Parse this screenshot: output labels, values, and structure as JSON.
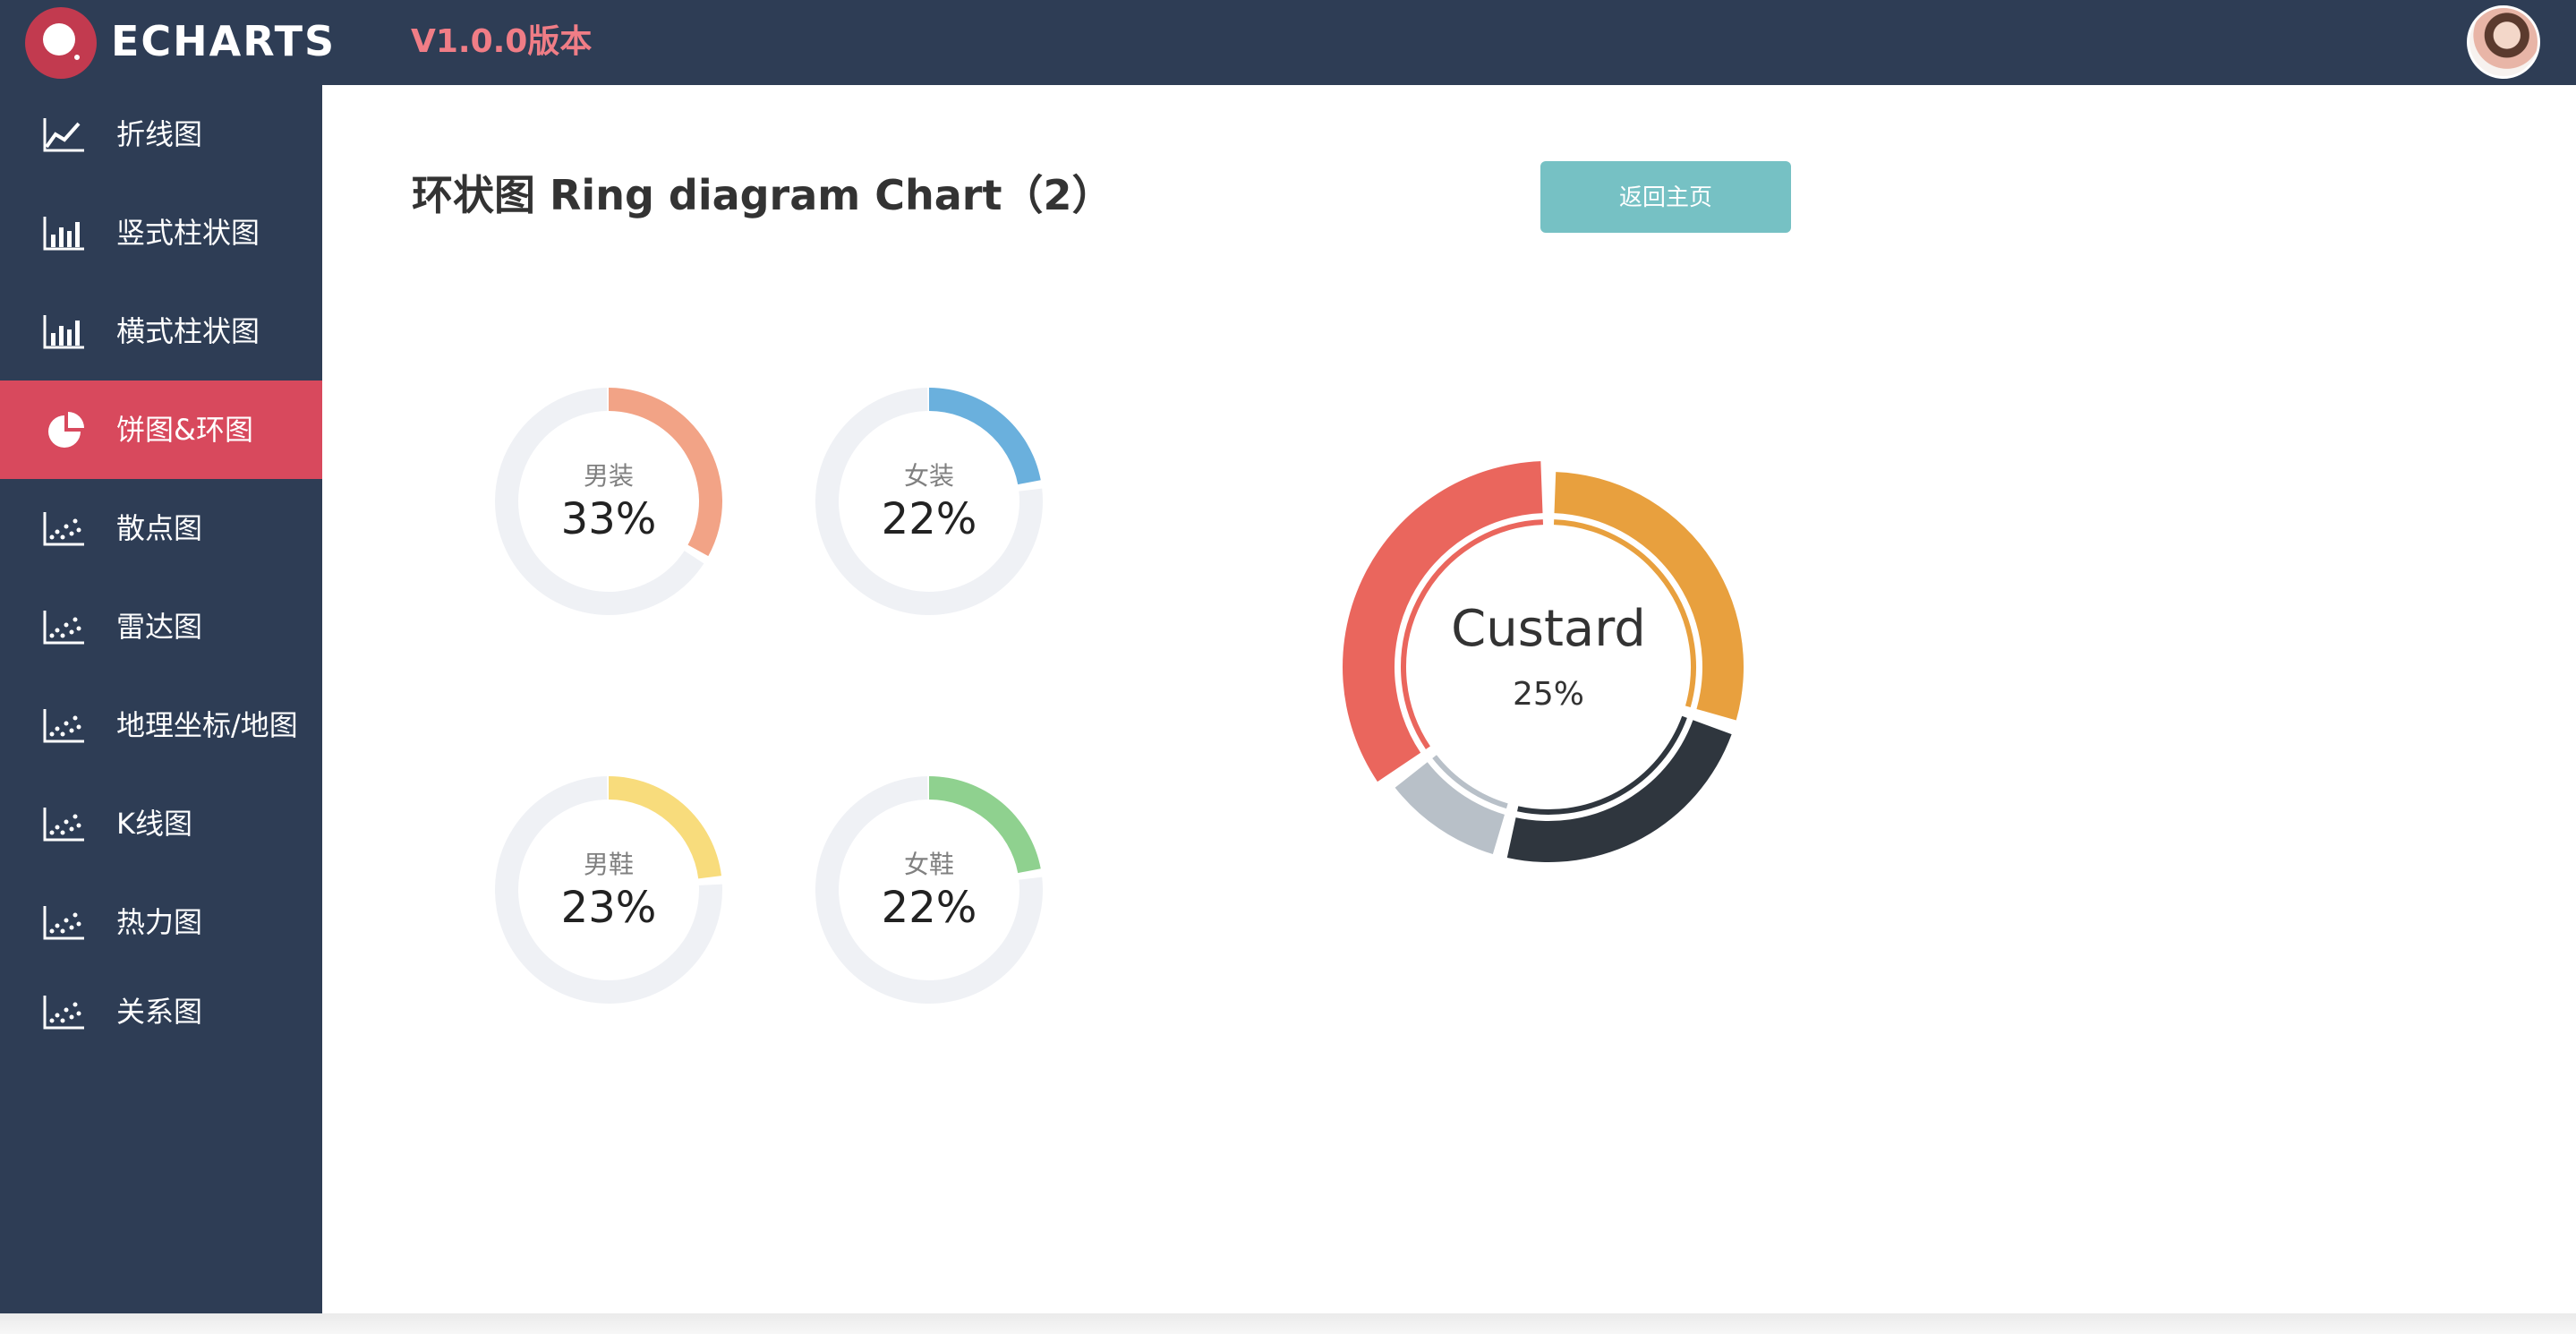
{
  "header": {
    "logo_text": "ECHARTS",
    "version": "V1.0.0版本"
  },
  "sidebar": {
    "items": [
      {
        "label": "折线图",
        "icon": "line-chart-icon",
        "active": false
      },
      {
        "label": "竖式柱状图",
        "icon": "bar-chart-icon",
        "active": false
      },
      {
        "label": "横式柱状图",
        "icon": "bar-chart-icon",
        "active": false
      },
      {
        "label": "饼图&环图",
        "icon": "pie-chart-icon",
        "active": true
      },
      {
        "label": "散点图",
        "icon": "scatter-chart-icon",
        "active": false
      },
      {
        "label": "雷达图",
        "icon": "scatter-chart-icon",
        "active": false
      },
      {
        "label": "地理坐标/地图",
        "icon": "scatter-chart-icon",
        "active": false
      },
      {
        "label": "K线图",
        "icon": "scatter-chart-icon",
        "active": false
      },
      {
        "label": "热力图",
        "icon": "scatter-chart-icon",
        "active": false
      },
      {
        "label": "关系图",
        "icon": "scatter-chart-icon",
        "active": false
      }
    ]
  },
  "main": {
    "title": "环状图 Ring diagram Chart（2）",
    "back_button": "返回主页"
  },
  "colors": {
    "topbar": "#2e3d55",
    "sidebar": "#2e3d55",
    "active_item": "#d8495d",
    "version_text": "#f07d86",
    "button": "#76c1c4",
    "ring_track": "#eff1f5"
  },
  "chart_data": [
    {
      "type": "pie",
      "label": "男装",
      "value_text": "33%",
      "value": 33,
      "color": "#f2a386"
    },
    {
      "type": "pie",
      "label": "女装",
      "value_text": "22%",
      "value": 22,
      "color": "#6ab0dd"
    },
    {
      "type": "pie",
      "label": "男鞋",
      "value_text": "23%",
      "value": 23,
      "color": "#f8dc7c"
    },
    {
      "type": "pie",
      "label": "女鞋",
      "value_text": "22%",
      "value": 22,
      "color": "#8fd18f"
    },
    {
      "type": "pie",
      "center_label": "Custard",
      "center_value": "25%",
      "slices": [
        {
          "value": 30,
          "color": "#e8a03e"
        },
        {
          "value": 24,
          "color": "#2f363e"
        },
        {
          "value": 11,
          "color": "#b8c0c8"
        },
        {
          "value": 35,
          "color": "#ea665d"
        }
      ],
      "highlighted_slice": 3
    }
  ]
}
